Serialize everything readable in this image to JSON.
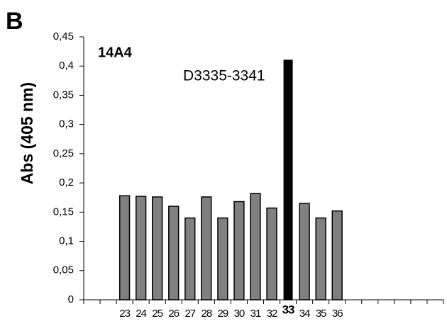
{
  "chart_data": {
    "type": "bar",
    "panel_label": "B",
    "title": "14A4",
    "annotation": "D3335-3341",
    "y_label": "Abs (405 nm)",
    "categories": [
      null,
      null,
      "23",
      "24",
      "25",
      "26",
      "27",
      "28",
      "29",
      "30",
      "31",
      "32",
      "33",
      "34",
      "35",
      "36",
      null,
      null,
      null,
      null,
      null,
      null
    ],
    "values": [
      null,
      null,
      0.178,
      0.177,
      0.176,
      0.16,
      0.14,
      0.176,
      0.14,
      0.168,
      0.182,
      0.157,
      0.41,
      0.165,
      0.14,
      0.152,
      null,
      null,
      null,
      null,
      null,
      null
    ],
    "color": "#808080",
    "highlight_index": 12,
    "highlight_color": "#000000",
    "ylim": [
      0,
      0.45
    ],
    "yticks": [
      0,
      {
        "value": 0.05,
        "label": "0,05"
      },
      {
        "value": 0.1,
        "label": "0,1"
      },
      {
        "value": 0.15,
        "label": "0,15"
      },
      {
        "value": 0.2,
        "label": "0,2"
      },
      {
        "value": 0.25,
        "label": "0,25"
      },
      {
        "value": 0.3,
        "label": "0,3"
      },
      {
        "value": 0.35,
        "label": "0,35"
      },
      {
        "value": 0.4,
        "label": "0,4"
      },
      {
        "value": 0.45,
        "label": "0,45"
      }
    ],
    "grid": false
  }
}
